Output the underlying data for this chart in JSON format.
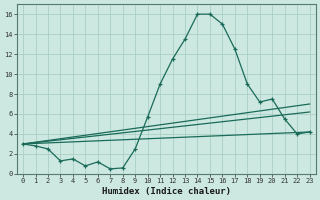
{
  "xlabel": "Humidex (Indice chaleur)",
  "bg_color": "#cce8e0",
  "grid_color": "#aacec5",
  "line_color": "#1a6b5a",
  "xlim": [
    -0.5,
    23.5
  ],
  "ylim": [
    0,
    17
  ],
  "xticks": [
    0,
    1,
    2,
    3,
    4,
    5,
    6,
    7,
    8,
    9,
    10,
    11,
    12,
    13,
    14,
    15,
    16,
    17,
    18,
    19,
    20,
    21,
    22,
    23
  ],
  "yticks": [
    0,
    2,
    4,
    6,
    8,
    10,
    12,
    14,
    16
  ],
  "line1_x": [
    0,
    1,
    2,
    3,
    4,
    5,
    6,
    7,
    8,
    9,
    10,
    11,
    12,
    13,
    14,
    15,
    16,
    17,
    18,
    19,
    20,
    21,
    22,
    23
  ],
  "line1_y": [
    3.0,
    2.8,
    2.5,
    1.3,
    1.5,
    0.8,
    1.2,
    0.5,
    0.6,
    2.5,
    5.7,
    9.0,
    11.5,
    13.5,
    16.0,
    16.0,
    15.0,
    12.5,
    9.0,
    7.2,
    7.5,
    5.5,
    4.0,
    4.2
  ],
  "line2_x": [
    0,
    23
  ],
  "line2_y": [
    3.0,
    7.0
  ],
  "line3_x": [
    0,
    23
  ],
  "line3_y": [
    3.0,
    6.2
  ],
  "line4_x": [
    0,
    23
  ],
  "line4_y": [
    3.0,
    4.2
  ],
  "xlabel_fontsize": 6.5,
  "tick_fontsize": 5.0
}
